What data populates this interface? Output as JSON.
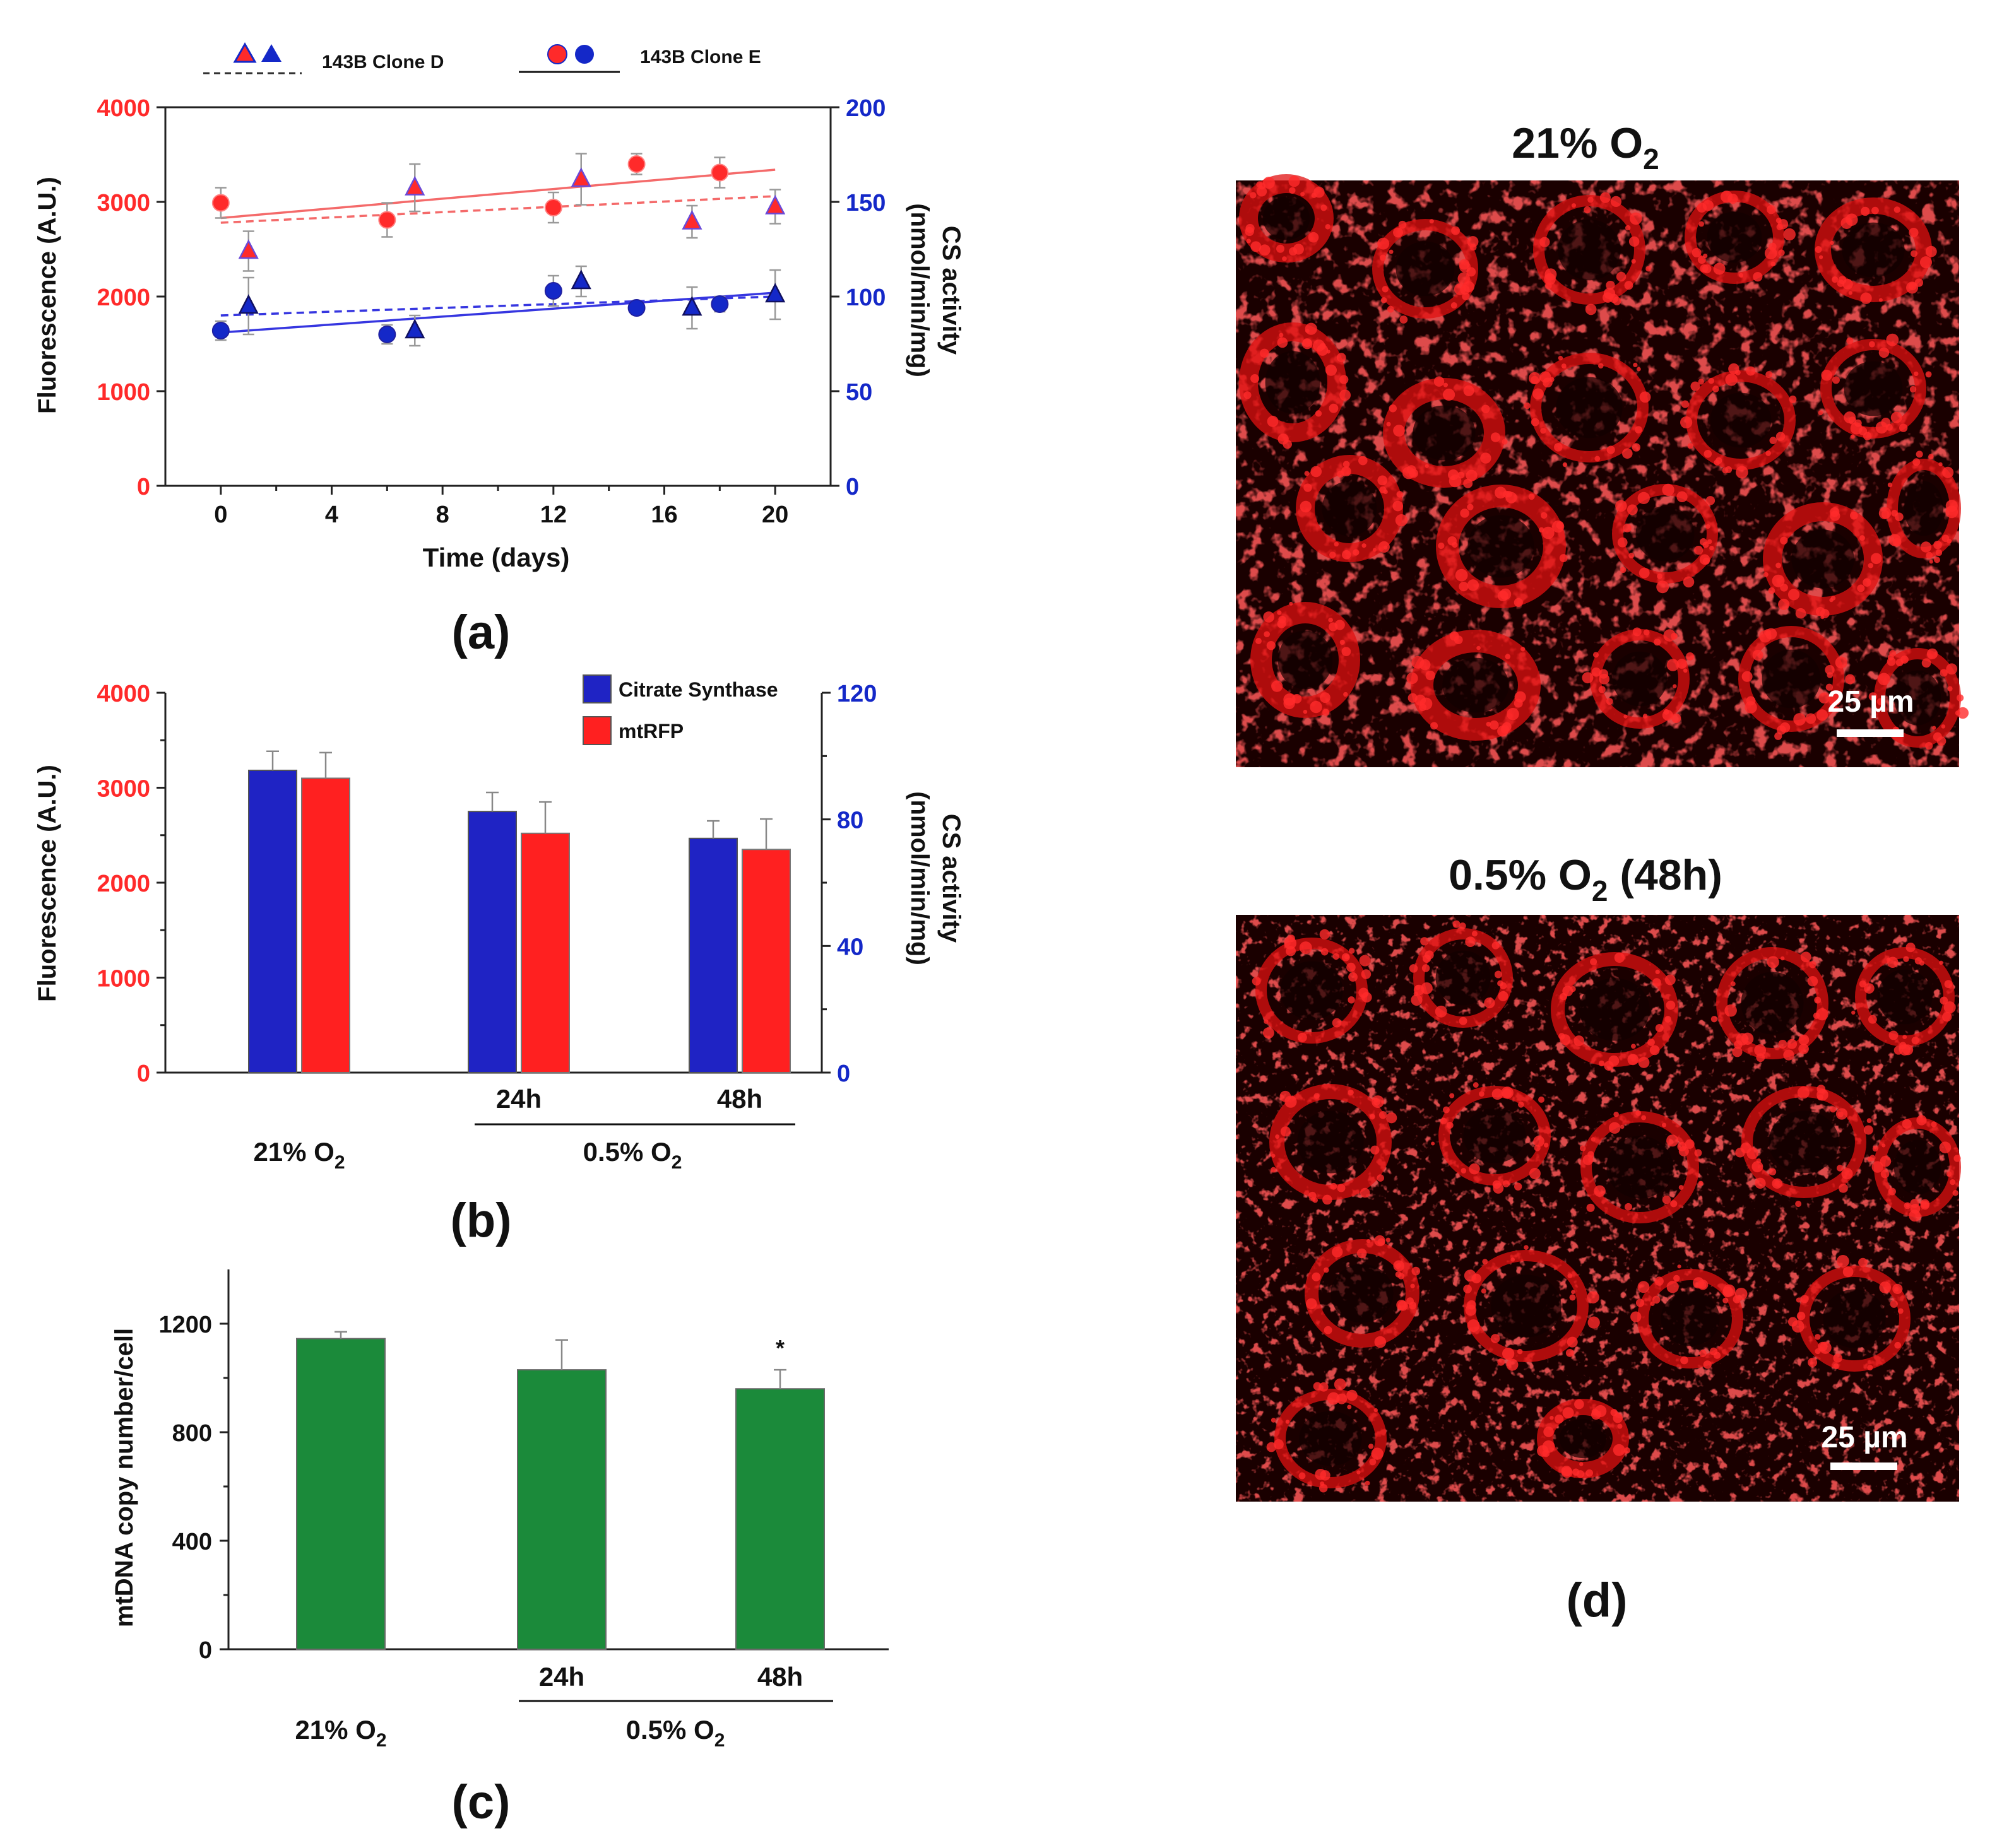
{
  "colors": {
    "red": "#ff2a2a",
    "blue": "#1428c8",
    "bar_blue": "#1f23c4",
    "bar_red": "#ff2020",
    "green": "#1b8a3a",
    "micro_bg": "#1a0000",
    "micro_signal": "#ff1e1e"
  },
  "panel_a": {
    "label": "(a)",
    "legend": {
      "clone_d": "143B Clone D",
      "clone_e": "143B Clone E"
    },
    "xlabel": "Time (days)",
    "ylabel_left": "Fluorescence (A.U.)",
    "ylabel_right_1": "CS activity",
    "ylabel_right_2": "(nmol/min/mg)",
    "x_ticks": [
      "0",
      "4",
      "8",
      "12",
      "16",
      "20"
    ],
    "y_left_ticks": [
      "0",
      "1000",
      "2000",
      "3000",
      "4000"
    ],
    "y_right_ticks": [
      "0",
      "50",
      "100",
      "150",
      "200"
    ]
  },
  "panel_b": {
    "label": "(b)",
    "legend": {
      "cs": "Citrate Synthase",
      "rfp": "mtRFP"
    },
    "ylabel_left": "Fluorescence (A.U.)",
    "ylabel_right_1": "CS activity",
    "ylabel_right_2": "(nmol/min/mg)",
    "y_left_ticks": [
      "0",
      "1000",
      "2000",
      "3000",
      "4000"
    ],
    "y_right_ticks": [
      "0",
      "40",
      "80",
      "120"
    ],
    "sub_24": "24h",
    "sub_48": "48h",
    "group_normoxia": "21% O",
    "group_hypoxia": "0.5% O",
    "o2_sub": "2"
  },
  "panel_c": {
    "label": "(c)",
    "ylabel": "mtDNA copy number/cell",
    "y_ticks": [
      "0",
      "400",
      "800",
      "1200"
    ],
    "sub_24": "24h",
    "sub_48": "48h",
    "group_normoxia": "21% O",
    "group_hypoxia": "0.5% O",
    "o2_sub": "2",
    "significance": "*"
  },
  "panel_d": {
    "label": "(d)",
    "top_title_main": "21% O",
    "top_title_sub": "2",
    "bottom_title_main": "0.5% O",
    "bottom_title_sub": "2",
    "bottom_title_suffix": " (48h)",
    "scale_bar": "25 µm"
  },
  "chart_data": [
    {
      "panel": "a",
      "type": "scatter",
      "title": "",
      "xlabel": "Time (days)",
      "ylabel": "Fluorescence (A.U.)",
      "ylabel_right": "CS activity (nmol/min/mg)",
      "xlim": [
        -2,
        22
      ],
      "ylim": [
        0,
        4000
      ],
      "ylim_right": [
        0,
        200
      ],
      "series": [
        {
          "name": "143B Clone E Fluorescence",
          "axis": "left",
          "marker": "circle",
          "color": "red",
          "points": [
            [
              0,
              2990,
              160
            ],
            [
              6,
              2810,
              180
            ],
            [
              12,
              2940,
              160
            ],
            [
              15,
              3400,
              110
            ],
            [
              18,
              3310,
              160
            ]
          ],
          "fit": {
            "style": "solid",
            "y0": 2830,
            "y1": 3340
          }
        },
        {
          "name": "143B Clone D Fluorescence",
          "axis": "left",
          "marker": "triangle",
          "color": "red",
          "points": [
            [
              1,
              2480,
              210
            ],
            [
              7,
              3150,
              250
            ],
            [
              13,
              3240,
              270
            ],
            [
              17,
              2790,
              170
            ],
            [
              20,
              2950,
              180
            ]
          ],
          "fit": {
            "style": "dashed",
            "y0": 2780,
            "y1": 3060
          }
        },
        {
          "name": "143B Clone E CS activity",
          "axis": "right",
          "marker": "circle",
          "color": "blue",
          "points": [
            [
              0,
              82,
              5
            ],
            [
              6,
              80,
              5
            ],
            [
              12,
              103,
              8
            ],
            [
              15,
              94,
              3
            ],
            [
              18,
              96,
              4
            ]
          ],
          "fit": {
            "style": "solid",
            "y0": 81,
            "y1": 102
          }
        },
        {
          "name": "143B Clone D CS activity",
          "axis": "right",
          "marker": "triangle",
          "color": "blue",
          "points": [
            [
              1,
              95,
              15
            ],
            [
              7,
              82,
              8
            ],
            [
              13,
              108,
              8
            ],
            [
              17,
              94,
              11
            ],
            [
              20,
              101,
              13
            ]
          ],
          "fit": {
            "style": "dashed",
            "y0": 90,
            "y1": 100
          }
        }
      ]
    },
    {
      "panel": "b",
      "type": "bar",
      "categories": [
        "21% O2",
        "0.5% O2 24h",
        "0.5% O2 48h"
      ],
      "ylabel": "Fluorescence (A.U.)",
      "ylabel_right": "CS activity (nmol/min/mg)",
      "ylim": [
        0,
        4000
      ],
      "ylim_right": [
        0,
        120
      ],
      "series": [
        {
          "name": "Citrate Synthase",
          "axis": "right",
          "color": "bar_blue",
          "values": [
            95.5,
            82.5,
            74
          ],
          "errors": [
            6,
            6,
            5.5
          ]
        },
        {
          "name": "mtRFP",
          "axis": "left",
          "color": "bar_red",
          "values": [
            3100,
            2520,
            2350
          ],
          "errors": [
            270,
            330,
            320
          ]
        }
      ]
    },
    {
      "panel": "c",
      "type": "bar",
      "categories": [
        "21% O2",
        "0.5% O2 24h",
        "0.5% O2 48h"
      ],
      "ylabel": "mtDNA copy number/cell",
      "ylim": [
        0,
        1400
      ],
      "series": [
        {
          "name": "mtDNA copy number",
          "color": "green",
          "values": [
            1145,
            1030,
            960
          ],
          "errors": [
            25,
            110,
            70
          ]
        }
      ],
      "annotations": [
        {
          "category": "0.5% O2 48h",
          "text": "*"
        }
      ]
    }
  ]
}
